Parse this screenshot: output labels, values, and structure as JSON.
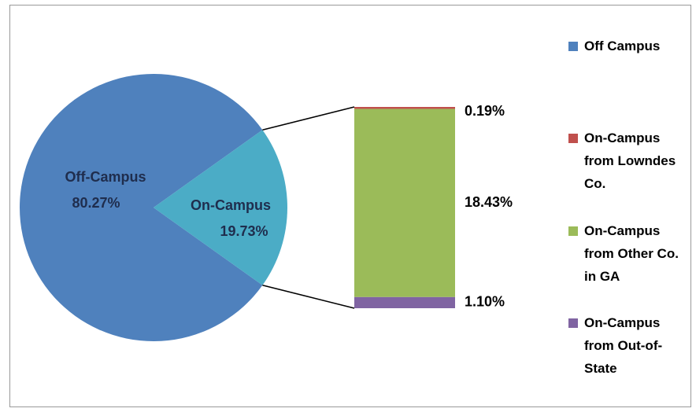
{
  "chart_data": {
    "type": "pie-of-bar",
    "pie": {
      "labels": [
        "Off-Campus",
        "On-Campus"
      ],
      "values": [
        80.27,
        19.73
      ],
      "value_labels": [
        "80.27%",
        "19.73%"
      ],
      "colors": [
        "#4f81bd",
        "#4bacc6"
      ]
    },
    "bar": {
      "values": [
        0.19,
        18.43,
        1.1
      ],
      "value_labels": [
        "0.19%",
        "18.43%",
        "1.10%"
      ],
      "colors": [
        "#c0504d",
        "#9bbb59",
        "#8064a2"
      ]
    },
    "legend": [
      {
        "name": "Off Campus",
        "color": "#4f81bd"
      },
      {
        "name": "On-Campus from Lowndes Co.",
        "color": "#c0504d"
      },
      {
        "name": "On-Campus from Other Co. in GA",
        "color": "#9bbb59"
      },
      {
        "name": "On-Campus from Out-of-State",
        "color": "#8064a2"
      }
    ]
  }
}
